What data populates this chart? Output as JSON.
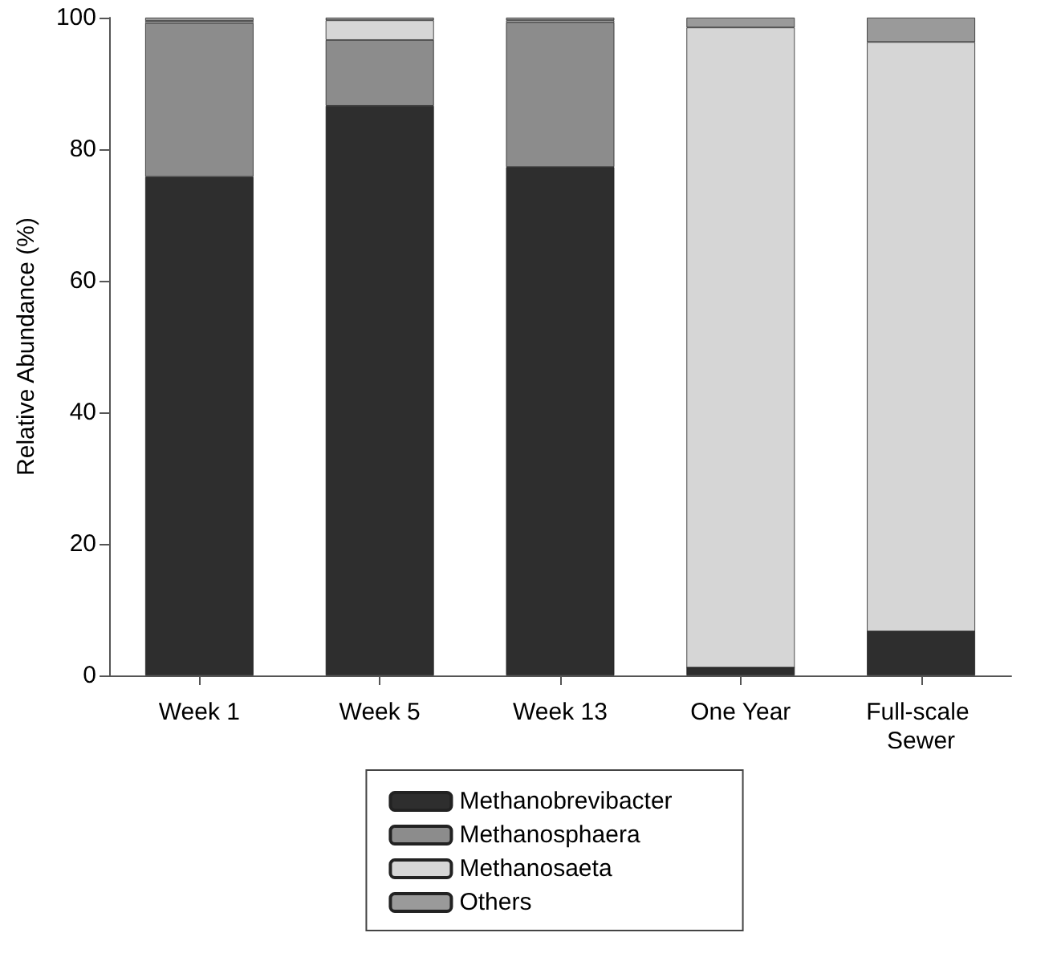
{
  "chart_data": {
    "type": "bar",
    "stacked": true,
    "ylabel": "Relative Abundance (%)",
    "categories": [
      "Week 1",
      "Week 5",
      "Week 13",
      "One Year",
      "Full-scale Sewer"
    ],
    "series": [
      {
        "name": "Methanobrevibacter",
        "color": "#2e2e2e",
        "values": [
          75.8,
          86.6,
          77.3,
          1.2,
          6.7
        ]
      },
      {
        "name": "Methanosphaera",
        "color": "#8c8c8c",
        "values": [
          23.4,
          10.0,
          22.0,
          0,
          0
        ]
      },
      {
        "name": "Methanosaeta",
        "color": "#d6d6d6",
        "values": [
          0.3,
          3.0,
          0.3,
          97.3,
          89.6
        ]
      },
      {
        "name": "Others",
        "color": "#9a9a9a",
        "values": [
          0.5,
          0.4,
          0.4,
          1.5,
          3.7
        ]
      }
    ],
    "ylim": [
      0,
      100
    ],
    "yticks": [
      0,
      20,
      40,
      60,
      80,
      100
    ],
    "grid": false,
    "legend": "bottom"
  }
}
